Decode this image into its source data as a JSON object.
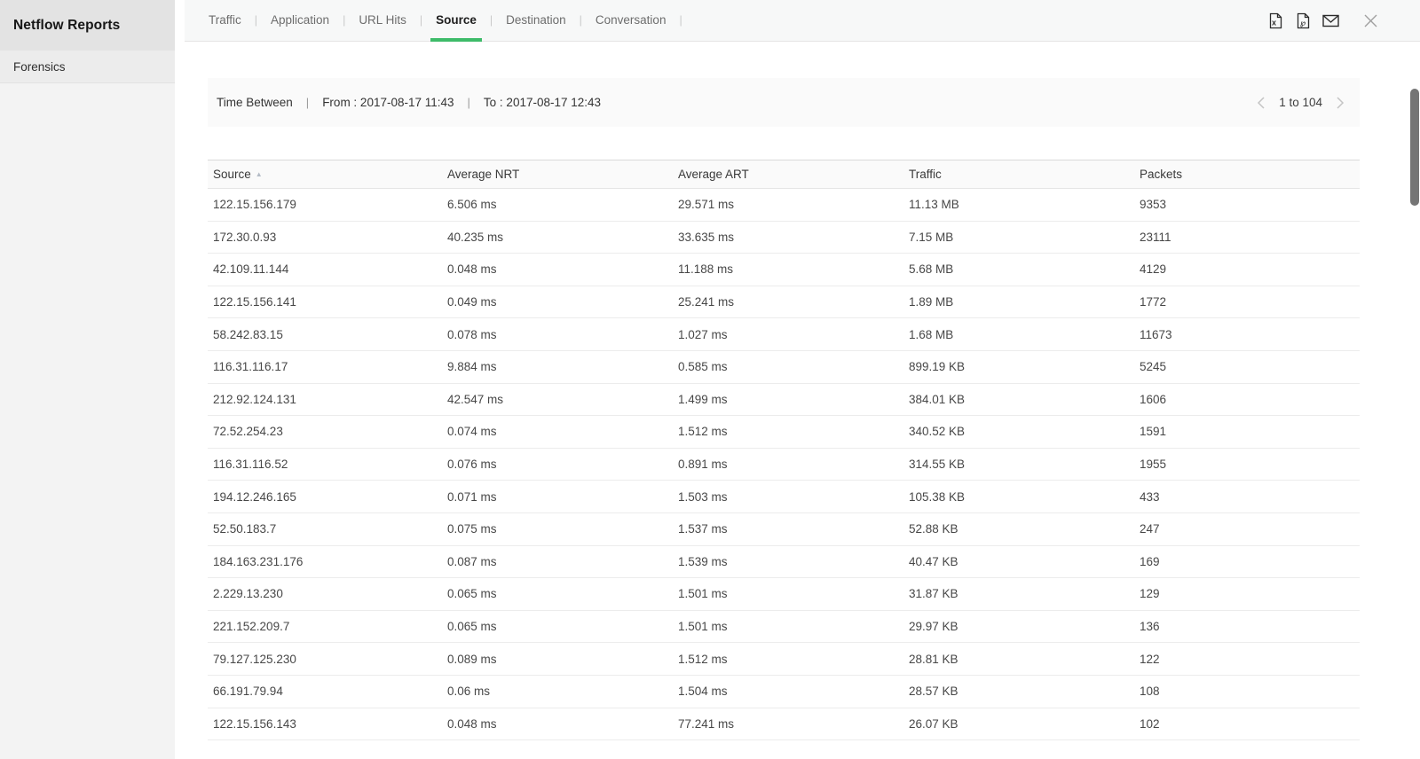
{
  "sidebar": {
    "title": "Netflow Reports",
    "items": [
      {
        "label": "Forensics"
      }
    ]
  },
  "tab_separator": "|",
  "tabs": [
    {
      "label": "Traffic",
      "active": false
    },
    {
      "label": "Application",
      "active": false
    },
    {
      "label": "URL Hits",
      "active": false
    },
    {
      "label": "Source",
      "active": true
    },
    {
      "label": "Destination",
      "active": false
    },
    {
      "label": "Conversation",
      "active": false
    }
  ],
  "toolbar": {
    "icons": [
      "export-excel-icon",
      "export-pdf-icon",
      "email-report-icon",
      "close-icon"
    ],
    "excel_glyph": "x",
    "pdf_glyph": "℘"
  },
  "filter_bar": {
    "label": "Time Between",
    "separator": "|",
    "from": "From : 2017-08-17 11:43",
    "to": "To : 2017-08-17 12:43"
  },
  "pagination": {
    "range_label": "1 to 104"
  },
  "table": {
    "columns": [
      "Source",
      "Average NRT",
      "Average ART",
      "Traffic",
      "Packets"
    ],
    "sort": {
      "column": "Source",
      "direction": "asc",
      "icon": "▲"
    },
    "rows": [
      {
        "source": "122.15.156.179",
        "avg_nrt": "6.506 ms",
        "avg_art": "29.571 ms",
        "traffic": "11.13 MB",
        "packets": "9353"
      },
      {
        "source": "172.30.0.93",
        "avg_nrt": "40.235 ms",
        "avg_art": "33.635 ms",
        "traffic": "7.15 MB",
        "packets": "23111"
      },
      {
        "source": "42.109.11.144",
        "avg_nrt": "0.048 ms",
        "avg_art": "11.188 ms",
        "traffic": "5.68 MB",
        "packets": "4129"
      },
      {
        "source": "122.15.156.141",
        "avg_nrt": "0.049 ms",
        "avg_art": "25.241 ms",
        "traffic": "1.89 MB",
        "packets": "1772"
      },
      {
        "source": "58.242.83.15",
        "avg_nrt": "0.078 ms",
        "avg_art": "1.027 ms",
        "traffic": "1.68 MB",
        "packets": "11673"
      },
      {
        "source": "116.31.116.17",
        "avg_nrt": "9.884 ms",
        "avg_art": "0.585 ms",
        "traffic": "899.19 KB",
        "packets": "5245"
      },
      {
        "source": "212.92.124.131",
        "avg_nrt": "42.547 ms",
        "avg_art": "1.499 ms",
        "traffic": "384.01 KB",
        "packets": "1606"
      },
      {
        "source": "72.52.254.23",
        "avg_nrt": "0.074 ms",
        "avg_art": "1.512 ms",
        "traffic": "340.52 KB",
        "packets": "1591"
      },
      {
        "source": "116.31.116.52",
        "avg_nrt": "0.076 ms",
        "avg_art": "0.891 ms",
        "traffic": "314.55 KB",
        "packets": "1955"
      },
      {
        "source": "194.12.246.165",
        "avg_nrt": "0.071 ms",
        "avg_art": "1.503 ms",
        "traffic": "105.38 KB",
        "packets": "433"
      },
      {
        "source": "52.50.183.7",
        "avg_nrt": "0.075 ms",
        "avg_art": "1.537 ms",
        "traffic": "52.88 KB",
        "packets": "247"
      },
      {
        "source": "184.163.231.176",
        "avg_nrt": "0.087 ms",
        "avg_art": "1.539 ms",
        "traffic": "40.47 KB",
        "packets": "169"
      },
      {
        "source": "2.229.13.230",
        "avg_nrt": "0.065 ms",
        "avg_art": "1.501 ms",
        "traffic": "31.87 KB",
        "packets": "129"
      },
      {
        "source": "221.152.209.7",
        "avg_nrt": "0.065 ms",
        "avg_art": "1.501 ms",
        "traffic": "29.97 KB",
        "packets": "136"
      },
      {
        "source": "79.127.125.230",
        "avg_nrt": "0.089 ms",
        "avg_art": "1.512 ms",
        "traffic": "28.81 KB",
        "packets": "122"
      },
      {
        "source": "66.191.79.94",
        "avg_nrt": "0.06 ms",
        "avg_art": "1.504 ms",
        "traffic": "28.57 KB",
        "packets": "108"
      },
      {
        "source": "122.15.156.143",
        "avg_nrt": "0.048 ms",
        "avg_art": "77.241 ms",
        "traffic": "26.07 KB",
        "packets": "102"
      }
    ]
  },
  "colors": {
    "accent_green": "#3dbb69",
    "sidebar_header_bg": "#e3e3e3",
    "sidebar_item_bg": "#ececec",
    "tabbar_bg": "#f7f8f8",
    "filterbar_bg": "#fafafa",
    "icon_dark": "#2b2b2b",
    "icon_light": "#a0a0a0"
  }
}
